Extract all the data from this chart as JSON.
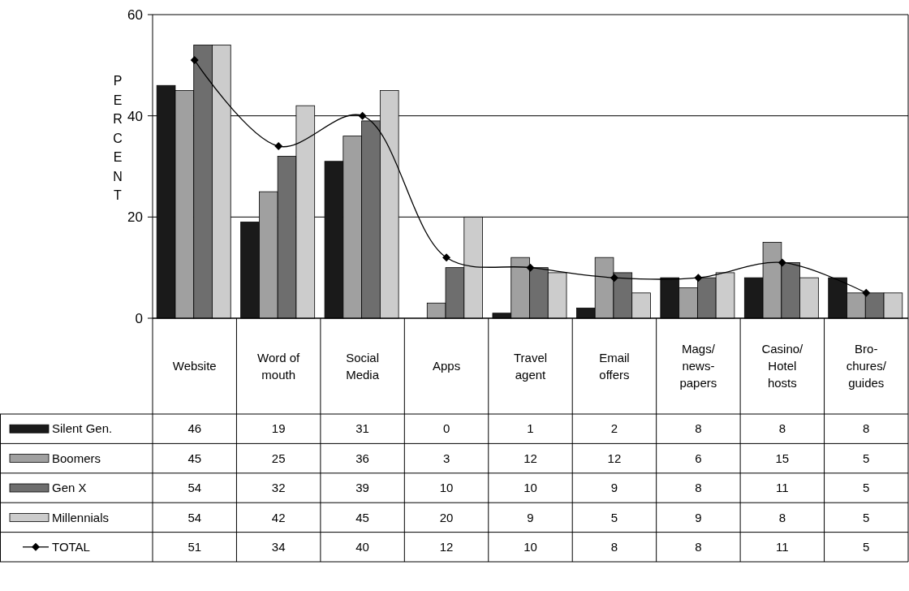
{
  "chart_data": {
    "type": "bar",
    "ylabel": "PERCENT",
    "categories": [
      "Website",
      "Word of\nmouth",
      "Social\nMedia",
      "Apps",
      "Travel\nagent",
      "Email\noffers",
      "Mags/\nnews-\npapers",
      "Casino/\nHotel\nhosts",
      "Bro-\nchures/\nguides"
    ],
    "series": [
      {
        "name": "Silent Gen.",
        "color": "#1a1a1a",
        "values": [
          46,
          19,
          31,
          0,
          1,
          2,
          8,
          8,
          8
        ]
      },
      {
        "name": "Boomers",
        "color": "#a0a0a0",
        "values": [
          45,
          25,
          36,
          3,
          12,
          12,
          6,
          15,
          5
        ]
      },
      {
        "name": "Gen X",
        "color": "#6e6e6e",
        "values": [
          54,
          32,
          39,
          10,
          10,
          9,
          8,
          11,
          5
        ]
      },
      {
        "name": "Millennials",
        "color": "#cccccc",
        "values": [
          54,
          42,
          45,
          20,
          9,
          5,
          9,
          8,
          5
        ]
      },
      {
        "name": "TOTAL",
        "type": "line",
        "color": "#000000",
        "marker": "diamond",
        "values": [
          51,
          34,
          40,
          12,
          10,
          8,
          8,
          11,
          5
        ]
      }
    ],
    "ylim": [
      0,
      60
    ],
    "yticks": [
      0,
      20,
      40,
      60
    ],
    "grid": "y",
    "legend": "bottom",
    "data_labels": true
  }
}
